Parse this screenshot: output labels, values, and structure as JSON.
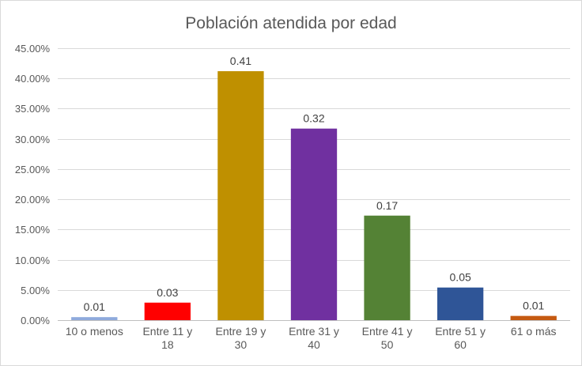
{
  "chart_data": {
    "type": "bar",
    "title": "Población atendida por edad",
    "xlabel": "",
    "ylabel": "",
    "ylim": [
      0,
      0.45
    ],
    "y_ticks": [
      0,
      0.05,
      0.1,
      0.15,
      0.2,
      0.25,
      0.3,
      0.35,
      0.4,
      0.45
    ],
    "y_tick_labels": [
      "0.00%",
      "5.00%",
      "10.00%",
      "15.00%",
      "20.00%",
      "25.00%",
      "30.00%",
      "35.00%",
      "40.00%",
      "45.00%"
    ],
    "grid": true,
    "legend": "none",
    "categories": [
      [
        "10 o menos"
      ],
      [
        "Entre 11 y",
        "18"
      ],
      [
        "Entre 19 y",
        "30"
      ],
      [
        "Entre 31 y",
        "40"
      ],
      [
        "Entre 41 y",
        "50"
      ],
      [
        "Entre 51 y",
        "60"
      ],
      [
        "61 o más"
      ]
    ],
    "values": [
      0.005,
      0.029,
      0.412,
      0.317,
      0.173,
      0.054,
      0.007
    ],
    "data_labels": [
      "0.01",
      "0.03",
      "0.41",
      "0.32",
      "0.17",
      "0.05",
      "0.01"
    ],
    "colors": [
      "#8faadc",
      "#ff0000",
      "#bf9000",
      "#7030a0",
      "#548235",
      "#2f5597",
      "#c55a11"
    ]
  }
}
